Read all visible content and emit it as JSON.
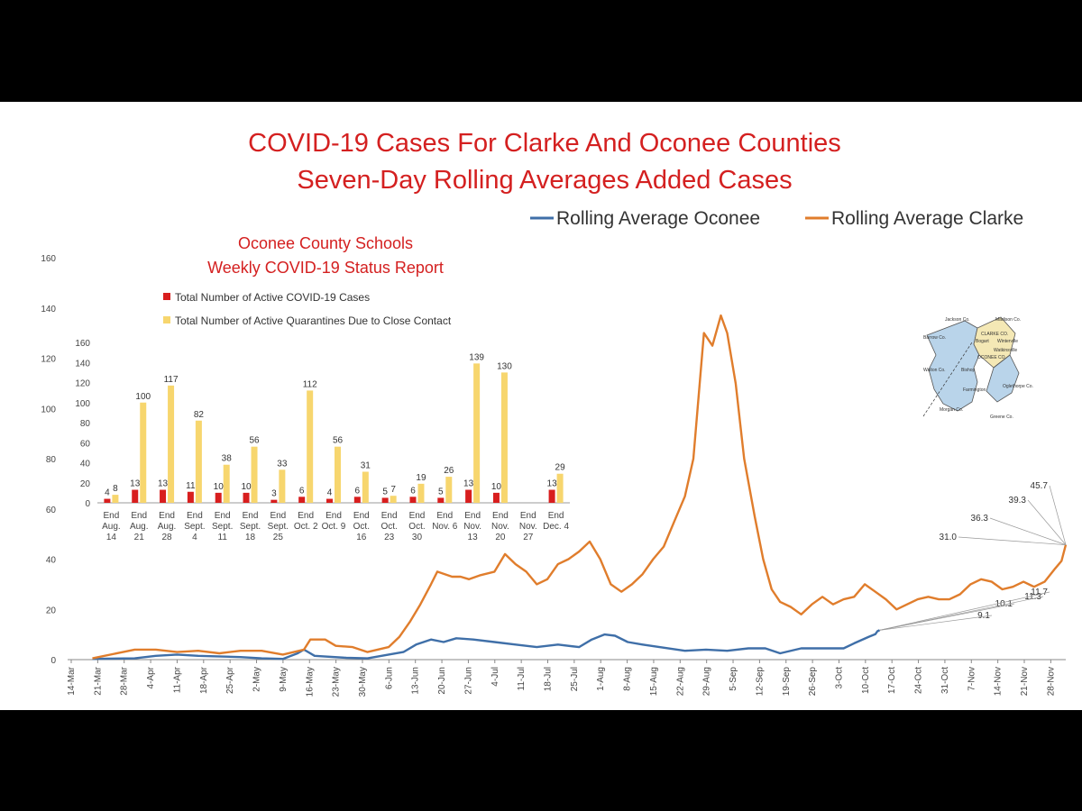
{
  "chart_data": [
    {
      "type": "line",
      "title": [
        "COVID-19 Cases For Clarke And Oconee Counties",
        "Seven-Day Rolling Averages Added Cases"
      ],
      "xlabel": "",
      "ylabel": "",
      "ylim": [
        0,
        160
      ],
      "yticks": [
        0,
        20,
        40,
        60,
        80,
        100,
        120,
        140,
        160
      ],
      "x_labels": [
        "14-Mar",
        "21-Mar",
        "28-Mar",
        "4-Apr",
        "11-Apr",
        "18-Apr",
        "25-Apr",
        "2-May",
        "9-May",
        "16-May",
        "23-May",
        "30-May",
        "6-Jun",
        "13-Jun",
        "20-Jun",
        "27-Jun",
        "4-Jul",
        "11-Jul",
        "18-Jul",
        "25-Jul",
        "1-Aug",
        "8-Aug",
        "15-Aug",
        "22-Aug",
        "29-Aug",
        "5-Sep",
        "12-Sep",
        "19-Sep",
        "26-Sep",
        "3-Oct",
        "10-Oct",
        "17-Oct",
        "24-Oct",
        "31-Oct",
        "7-Nov",
        "14-Nov",
        "21-Nov",
        "28-Nov"
      ],
      "legend_position": "top-right",
      "series": [
        {
          "name": "Rolling Average Oconee",
          "color": "#3f6fa8",
          "points": [
            [
              1,
              0.3
            ],
            [
              3,
              0.5
            ],
            [
              4,
              1.5
            ],
            [
              5,
              2
            ],
            [
              6,
              1.5
            ],
            [
              8,
              1
            ],
            [
              9,
              0.5
            ],
            [
              10,
              0.3
            ],
            [
              10.7,
              2.5
            ],
            [
              11,
              4
            ],
            [
              11.5,
              1.5
            ],
            [
              13,
              0.7
            ],
            [
              14,
              0.5
            ],
            [
              15,
              2
            ],
            [
              15.7,
              3
            ],
            [
              16.3,
              6
            ],
            [
              17,
              8
            ],
            [
              17.6,
              7
            ],
            [
              18.2,
              8.5
            ],
            [
              19,
              8
            ],
            [
              20,
              7
            ],
            [
              21,
              6
            ],
            [
              22,
              5
            ],
            [
              23,
              6
            ],
            [
              24,
              5
            ],
            [
              24.6,
              8
            ],
            [
              25.2,
              10
            ],
            [
              25.7,
              9.5
            ],
            [
              26.3,
              7
            ],
            [
              27,
              6
            ],
            [
              27.8,
              5
            ],
            [
              29,
              3.5
            ],
            [
              30,
              4
            ],
            [
              31,
              3.5
            ],
            [
              32,
              4.5
            ],
            [
              32.8,
              4.5
            ],
            [
              33.5,
              2.5
            ],
            [
              34.5,
              4.5
            ],
            [
              35.5,
              4.5
            ],
            [
              36.5,
              4.5
            ],
            [
              37,
              6.5
            ],
            [
              37.7,
              9.1
            ],
            [
              38,
              10.1
            ],
            [
              38.1,
              11.3
            ],
            [
              38.2,
              11.7
            ]
          ]
        },
        {
          "name": "Rolling Average Clarke",
          "color": "#e07d2c",
          "points": [
            [
              1,
              0.5
            ],
            [
              3,
              4
            ],
            [
              4,
              4
            ],
            [
              5,
              3
            ],
            [
              6,
              3.5
            ],
            [
              7,
              2.5
            ],
            [
              8,
              3.5
            ],
            [
              9,
              3.5
            ],
            [
              10,
              2
            ],
            [
              11,
              4
            ],
            [
              11.3,
              8
            ],
            [
              12,
              8
            ],
            [
              12.5,
              5.5
            ],
            [
              13.3,
              5
            ],
            [
              14,
              3
            ],
            [
              15,
              5
            ],
            [
              15.5,
              9
            ],
            [
              16,
              15
            ],
            [
              16.5,
              22
            ],
            [
              17,
              30
            ],
            [
              17.3,
              35
            ],
            [
              18,
              33
            ],
            [
              18.4,
              33
            ],
            [
              18.8,
              32
            ],
            [
              19.3,
              33.5
            ],
            [
              20,
              35
            ],
            [
              20.5,
              42
            ],
            [
              21,
              38
            ],
            [
              21.5,
              35
            ],
            [
              22,
              30
            ],
            [
              22.5,
              32
            ],
            [
              23,
              38
            ],
            [
              23.5,
              40
            ],
            [
              24,
              43
            ],
            [
              24.5,
              47
            ],
            [
              25,
              40
            ],
            [
              25.5,
              30
            ],
            [
              26,
              27
            ],
            [
              26.5,
              30
            ],
            [
              27,
              34
            ],
            [
              27.5,
              40
            ],
            [
              28,
              45
            ],
            [
              28.5,
              55
            ],
            [
              29,
              65
            ],
            [
              29.4,
              80
            ],
            [
              29.9,
              130
            ],
            [
              30.3,
              125
            ],
            [
              30.7,
              137
            ],
            [
              31,
              130
            ],
            [
              31.4,
              110
            ],
            [
              31.8,
              80
            ],
            [
              32.3,
              57
            ],
            [
              32.7,
              40
            ],
            [
              33.1,
              28
            ],
            [
              33.5,
              23
            ],
            [
              34,
              21
            ],
            [
              34.5,
              18
            ],
            [
              35,
              22
            ],
            [
              35.5,
              25
            ],
            [
              36,
              22
            ],
            [
              36.5,
              24
            ],
            [
              37,
              25
            ],
            [
              37.5,
              30
            ],
            [
              38,
              27
            ],
            [
              38.5,
              24
            ],
            [
              39,
              20
            ],
            [
              39.5,
              22
            ],
            [
              40,
              24
            ],
            [
              40.5,
              25
            ],
            [
              41,
              24
            ],
            [
              41.5,
              24
            ],
            [
              42,
              26
            ],
            [
              42.5,
              30
            ],
            [
              43,
              32
            ],
            [
              43.5,
              31
            ],
            [
              44,
              28
            ],
            [
              44.5,
              29
            ],
            [
              45,
              31
            ],
            [
              45.5,
              29
            ],
            [
              46,
              31
            ],
            [
              46.5,
              36.3
            ],
            [
              46.8,
              39.3
            ],
            [
              47,
              45.7
            ]
          ]
        }
      ],
      "annotations_oconee": [
        "9.1",
        "10.1",
        "11.3",
        "11.7"
      ],
      "annotations_clarke": [
        "31.0",
        "36.3",
        "39.3",
        "45.7"
      ]
    },
    {
      "type": "bar",
      "title": [
        "Oconee County Schools",
        "Weekly COVID-19 Status Report"
      ],
      "ylim": [
        0,
        160
      ],
      "yticks": [
        0,
        20,
        40,
        60,
        80,
        100,
        120,
        140,
        160
      ],
      "categories": [
        [
          "End",
          "Aug.",
          "14"
        ],
        [
          "End",
          "Aug.",
          "21"
        ],
        [
          "End",
          "Aug.",
          "28"
        ],
        [
          "End",
          "Sept.",
          "4"
        ],
        [
          "End",
          "Sept.",
          "11"
        ],
        [
          "End",
          "Sept.",
          "18"
        ],
        [
          "End",
          "Sept.",
          "25"
        ],
        [
          "End",
          "Oct. 2"
        ],
        [
          "End",
          "Oct. 9"
        ],
        [
          "End",
          "Oct.",
          "16"
        ],
        [
          "End",
          "Oct.",
          "23"
        ],
        [
          "End",
          "Oct.",
          "30"
        ],
        [
          "End",
          "Nov. 6"
        ],
        [
          "End",
          "Nov.",
          "13"
        ],
        [
          "End",
          "Nov.",
          "20"
        ],
        [
          "End",
          "Nov.",
          "27"
        ],
        [
          "End",
          "Dec. 4"
        ]
      ],
      "series": [
        {
          "name": "Total Number of Active COVID-19 Cases",
          "color": "#d81e1e",
          "values": [
            4,
            13,
            13,
            11,
            10,
            10,
            3,
            6,
            4,
            6,
            5,
            6,
            5,
            13,
            10,
            null,
            13
          ]
        },
        {
          "name": "Total Number of Active Quarantines Due to Close Contact",
          "color": "#f7d66e",
          "values": [
            8,
            100,
            117,
            82,
            38,
            56,
            33,
            112,
            56,
            31,
            7,
            19,
            26,
            139,
            130,
            null,
            29
          ]
        }
      ]
    }
  ],
  "map": {
    "labels": [
      "Jackson Co.",
      "Madison Co.",
      "Barrow Co.",
      "CLARKE CO.",
      "Bogart",
      "Winterville",
      "OCONEE CO.",
      "Watkinsville",
      "Bishop",
      "Farmington",
      "Walton Co.",
      "Oglethorpe Co.",
      "Morgan Co.",
      "Greene Co."
    ],
    "colors": {
      "oconee": "#b9d4ea",
      "clarke": "#f4e8b5"
    }
  }
}
